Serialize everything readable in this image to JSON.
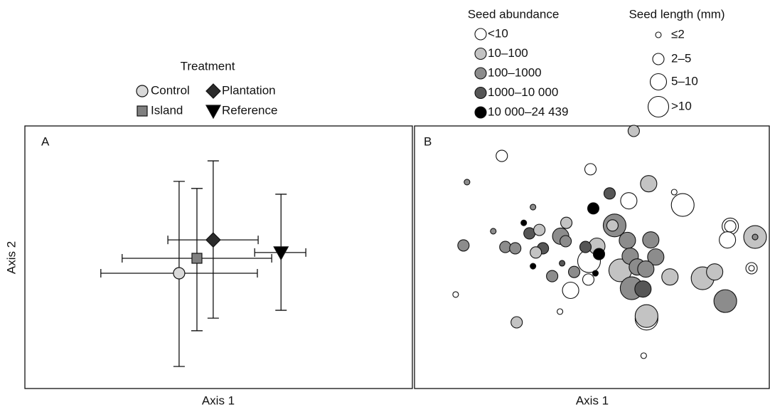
{
  "chart_data": [
    {
      "type": "errorbar",
      "panel_label": "A",
      "xlabel": "Axis 1",
      "ylabel": "Axis 2",
      "legend_title": "Treatment",
      "xlim": [
        0,
        100
      ],
      "ylim": [
        0,
        100
      ],
      "series": [
        {
          "name": "Control",
          "marker": "circle",
          "color": "#d9d9d9",
          "x": 39.8,
          "y": 43.9,
          "x_low": 19.6,
          "x_high": 60.0,
          "y_low": 8.4,
          "y_high": 78.9
        },
        {
          "name": "Plantation",
          "marker": "diamond",
          "color": "#2b2b2b",
          "x": 48.6,
          "y": 56.6,
          "x_low": 36.9,
          "x_high": 60.2,
          "y_low": 26.8,
          "y_high": 86.7
        },
        {
          "name": "Island",
          "marker": "square",
          "color": "#808080",
          "x": 44.4,
          "y": 49.6,
          "x_low": 25.1,
          "x_high": 63.7,
          "y_low": 22.0,
          "y_high": 76.2
        },
        {
          "name": "Reference",
          "marker": "triangle-down",
          "color": "#000000",
          "x": 66.1,
          "y": 51.8,
          "x_low": 59.3,
          "x_high": 72.5,
          "y_low": 29.8,
          "y_high": 74.0
        }
      ]
    },
    {
      "type": "bubble",
      "panel_label": "B",
      "xlabel": "Axis 1",
      "xlim": [
        0,
        100
      ],
      "ylim": [
        0,
        100
      ],
      "abundance_title": "Seed abundance",
      "abundance_labels": [
        "<10",
        "10–100",
        "100–1000",
        "1000–10 000",
        "10 000–24 439"
      ],
      "abundance_colors": [
        "#ffffff",
        "#c3c3c3",
        "#8c8c8c",
        "#565656",
        "#000000"
      ],
      "length_title": "Seed length (mm)",
      "length_labels": [
        "≤2",
        "2–5",
        "5–10",
        ">10"
      ],
      "points": [
        {
          "x": 61.8,
          "y": 98.1,
          "abundance": 1,
          "length": 1
        },
        {
          "x": 24.6,
          "y": 88.6,
          "abundance": 0,
          "length": 1
        },
        {
          "x": 49.6,
          "y": 83.5,
          "abundance": 0,
          "length": 1
        },
        {
          "x": 14.8,
          "y": 78.6,
          "abundance": 2,
          "length": 0
        },
        {
          "x": 66.0,
          "y": 78.0,
          "abundance": 1,
          "length": 2
        },
        {
          "x": 55.0,
          "y": 74.3,
          "abundance": 3,
          "length": 1
        },
        {
          "x": 73.2,
          "y": 74.8,
          "abundance": 0,
          "length": 0
        },
        {
          "x": 75.6,
          "y": 69.9,
          "abundance": 0,
          "length": 3
        },
        {
          "x": 60.4,
          "y": 71.5,
          "abundance": 0,
          "length": 2
        },
        {
          "x": 50.4,
          "y": 68.6,
          "abundance": 4,
          "length": 1
        },
        {
          "x": 33.4,
          "y": 69.1,
          "abundance": 2,
          "length": 0
        },
        {
          "x": 42.8,
          "y": 63.1,
          "abundance": 1,
          "length": 1
        },
        {
          "x": 56.4,
          "y": 62.1,
          "abundance": 2,
          "length": 3
        },
        {
          "x": 55.8,
          "y": 62.1,
          "abundance": 1,
          "length": 1
        },
        {
          "x": 89.0,
          "y": 61.8,
          "abundance": 0,
          "length": 2
        },
        {
          "x": 89.0,
          "y": 61.8,
          "abundance": 0,
          "length": 1
        },
        {
          "x": 96.0,
          "y": 57.7,
          "abundance": 1,
          "length": 3
        },
        {
          "x": 96.0,
          "y": 57.7,
          "abundance": 2,
          "length": 0
        },
        {
          "x": 22.2,
          "y": 59.9,
          "abundance": 2,
          "length": 0
        },
        {
          "x": 30.8,
          "y": 63.1,
          "abundance": 4,
          "length": 0
        },
        {
          "x": 32.4,
          "y": 59.1,
          "abundance": 3,
          "length": 1
        },
        {
          "x": 35.2,
          "y": 60.4,
          "abundance": 1,
          "length": 1
        },
        {
          "x": 41.2,
          "y": 58.0,
          "abundance": 2,
          "length": 2
        },
        {
          "x": 42.6,
          "y": 56.1,
          "abundance": 2,
          "length": 1
        },
        {
          "x": 60.0,
          "y": 56.4,
          "abundance": 2,
          "length": 2
        },
        {
          "x": 66.6,
          "y": 56.6,
          "abundance": 2,
          "length": 2
        },
        {
          "x": 51.4,
          "y": 54.2,
          "abundance": 1,
          "length": 2
        },
        {
          "x": 48.2,
          "y": 53.9,
          "abundance": 3,
          "length": 1
        },
        {
          "x": 13.8,
          "y": 54.5,
          "abundance": 2,
          "length": 1
        },
        {
          "x": 25.6,
          "y": 53.9,
          "abundance": 2,
          "length": 1
        },
        {
          "x": 28.4,
          "y": 53.4,
          "abundance": 2,
          "length": 1
        },
        {
          "x": 36.2,
          "y": 53.4,
          "abundance": 3,
          "length": 1
        },
        {
          "x": 34.2,
          "y": 51.8,
          "abundance": 1,
          "length": 1
        },
        {
          "x": 88.2,
          "y": 56.6,
          "abundance": 0,
          "length": 2
        },
        {
          "x": 52.0,
          "y": 51.2,
          "abundance": 4,
          "length": 1
        },
        {
          "x": 60.8,
          "y": 50.4,
          "abundance": 2,
          "length": 2
        },
        {
          "x": 68.0,
          "y": 50.1,
          "abundance": 2,
          "length": 2
        },
        {
          "x": 49.2,
          "y": 48.5,
          "abundance": 0,
          "length": 3
        },
        {
          "x": 62.8,
          "y": 46.3,
          "abundance": 2,
          "length": 2
        },
        {
          "x": 58.0,
          "y": 45.0,
          "abundance": 1,
          "length": 3
        },
        {
          "x": 65.2,
          "y": 45.5,
          "abundance": 2,
          "length": 2
        },
        {
          "x": 95.0,
          "y": 45.8,
          "abundance": 0,
          "length": 1
        },
        {
          "x": 95.0,
          "y": 45.8,
          "abundance": 0,
          "length": 0
        },
        {
          "x": 33.4,
          "y": 46.6,
          "abundance": 4,
          "length": 0
        },
        {
          "x": 41.6,
          "y": 47.7,
          "abundance": 3,
          "length": 0
        },
        {
          "x": 45.0,
          "y": 44.4,
          "abundance": 2,
          "length": 1
        },
        {
          "x": 38.8,
          "y": 42.8,
          "abundance": 2,
          "length": 1
        },
        {
          "x": 49.0,
          "y": 41.5,
          "abundance": 0,
          "length": 1
        },
        {
          "x": 51.0,
          "y": 43.9,
          "abundance": 4,
          "length": 0
        },
        {
          "x": 84.6,
          "y": 44.4,
          "abundance": 1,
          "length": 2
        },
        {
          "x": 81.2,
          "y": 42.0,
          "abundance": 1,
          "length": 3
        },
        {
          "x": 44.0,
          "y": 37.4,
          "abundance": 0,
          "length": 2
        },
        {
          "x": 61.2,
          "y": 38.2,
          "abundance": 2,
          "length": 3
        },
        {
          "x": 64.4,
          "y": 37.9,
          "abundance": 3,
          "length": 2
        },
        {
          "x": 72.0,
          "y": 42.5,
          "abundance": 1,
          "length": 2
        },
        {
          "x": 87.6,
          "y": 33.3,
          "abundance": 2,
          "length": 3
        },
        {
          "x": 11.6,
          "y": 35.8,
          "abundance": 0,
          "length": 0
        },
        {
          "x": 41.0,
          "y": 29.3,
          "abundance": 0,
          "length": 0
        },
        {
          "x": 28.8,
          "y": 25.2,
          "abundance": 1,
          "length": 1
        },
        {
          "x": 65.4,
          "y": 26.6,
          "abundance": 0,
          "length": 3
        },
        {
          "x": 65.4,
          "y": 27.6,
          "abundance": 1,
          "length": 3
        },
        {
          "x": 64.6,
          "y": 12.5,
          "abundance": 0,
          "length": 0
        }
      ]
    }
  ]
}
